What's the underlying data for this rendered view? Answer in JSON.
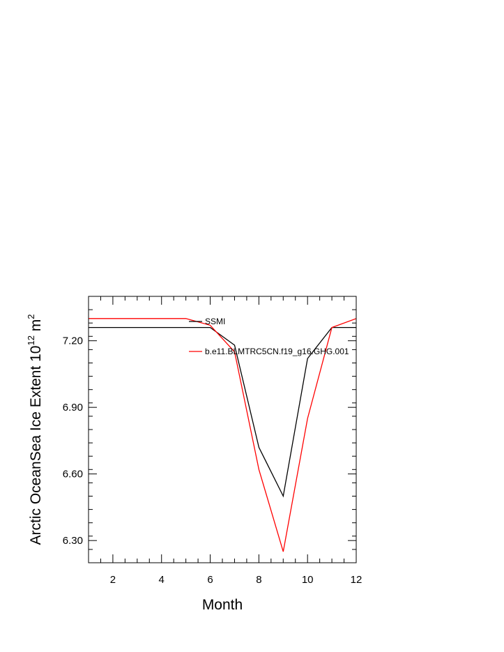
{
  "chart_data": {
    "type": "line",
    "xlabel": "Month",
    "ylabel_main": "Arctic OceanSea Ice Extent 10",
    "ylabel_exp": "12",
    "ylabel_unit": " m",
    "ylabel_unit_exp": "2",
    "xlim": [
      1,
      12
    ],
    "ylim": [
      6.2,
      7.4
    ],
    "x_ticks": [
      2,
      4,
      6,
      8,
      10,
      12
    ],
    "x_tick_labels": [
      "2",
      "4",
      "6",
      "8",
      "10",
      "12"
    ],
    "y_ticks": [
      6.3,
      6.6,
      6.9,
      7.2
    ],
    "y_tick_labels": [
      "6.30",
      "6.60",
      "6.90",
      "7.20"
    ],
    "grid": false,
    "legend_position": "top-right",
    "x": [
      1,
      2,
      3,
      4,
      5,
      6,
      7,
      8,
      9,
      10,
      11,
      12
    ],
    "series": [
      {
        "name": "SSMI",
        "color": "#000000",
        "values": [
          7.26,
          7.26,
          7.26,
          7.26,
          7.26,
          7.26,
          7.18,
          6.72,
          6.5,
          7.12,
          7.26,
          7.26
        ]
      },
      {
        "name": "b.e11.BLMTRC5CN.f19_g16.GHG.001",
        "color": "#ff0000",
        "values": [
          7.3,
          7.3,
          7.3,
          7.3,
          7.3,
          7.27,
          7.15,
          6.62,
          6.25,
          6.85,
          7.26,
          7.3
        ]
      }
    ]
  }
}
